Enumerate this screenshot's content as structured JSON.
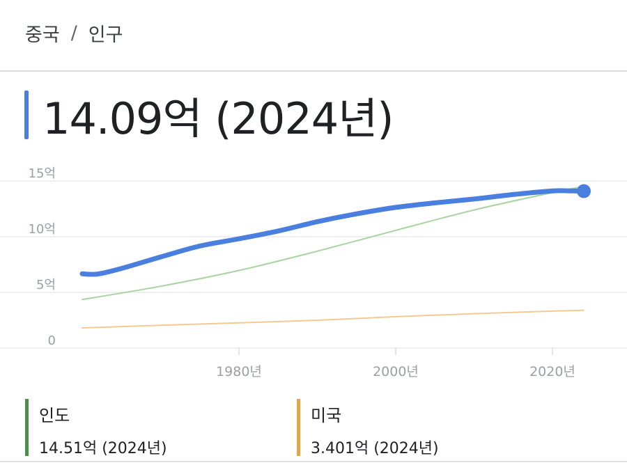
{
  "breadcrumb": {
    "country": "중국",
    "separator": "/",
    "topic": "인구"
  },
  "headline": {
    "value": "14.09억 (2024년)",
    "accent_color": "#4a7fe0"
  },
  "chart_data": {
    "type": "line",
    "x_tick_labels": [
      "1980년",
      "2000년",
      "2020년"
    ],
    "y_tick_labels": [
      "15억",
      "10억",
      "5억",
      "0"
    ],
    "ylim": [
      0,
      15
    ],
    "xlim": [
      1960,
      2024
    ],
    "grid": true,
    "series": [
      {
        "name": "중국",
        "color": "#4a7fe0",
        "x": [
          1960,
          1962,
          1965,
          1970,
          1975,
          1980,
          1985,
          1990,
          1995,
          2000,
          2005,
          2010,
          2015,
          2020,
          2022,
          2024
        ],
        "values": [
          6.67,
          6.65,
          7.15,
          8.18,
          9.16,
          9.81,
          10.51,
          11.35,
          12.05,
          12.63,
          13.04,
          13.38,
          13.79,
          14.11,
          14.12,
          14.09
        ]
      },
      {
        "name": "인도",
        "color": "#a8d4a0",
        "x": [
          1960,
          1970,
          1980,
          1990,
          2000,
          2010,
          2020,
          2024
        ],
        "values": [
          4.36,
          5.55,
          6.97,
          8.7,
          10.57,
          12.4,
          13.96,
          14.51
        ],
        "legend_value": "14.51억 (2024년)",
        "stripe_color": "#4b8f4a"
      },
      {
        "name": "미국",
        "color": "#f5c98f",
        "x": [
          1960,
          1970,
          1980,
          1990,
          2000,
          2010,
          2020,
          2024
        ],
        "values": [
          1.81,
          2.05,
          2.27,
          2.5,
          2.82,
          3.09,
          3.32,
          3.4
        ],
        "legend_value": "3.401억 (2024년)",
        "stripe_color": "#e1a54a"
      }
    ]
  }
}
